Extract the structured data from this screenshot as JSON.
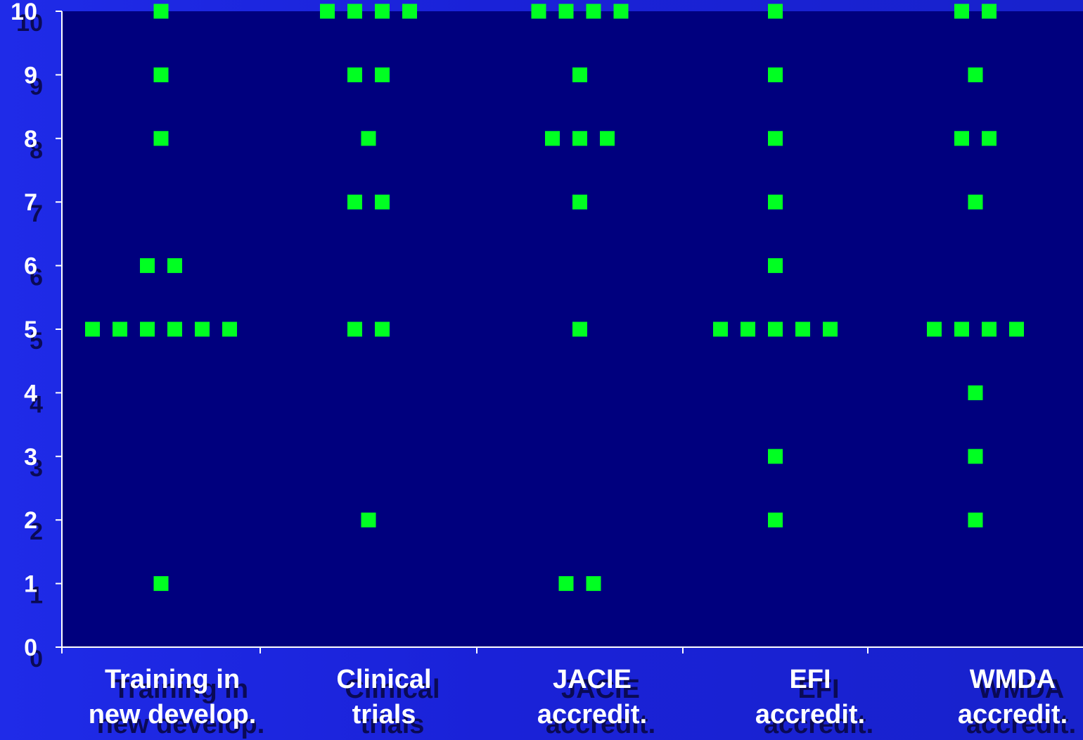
{
  "colors": {
    "plot_background": "#00007e",
    "marker": "#00ff22",
    "axis": "#ffffff",
    "label": "#ffffff",
    "label_shadow": "#0a0a55"
  },
  "chart_data": {
    "type": "scatter",
    "title": "",
    "xlabel": "",
    "ylabel": "",
    "ylim": [
      0,
      10
    ],
    "yticks": [
      "0",
      "1",
      "2",
      "3",
      "4",
      "5",
      "6",
      "7",
      "8",
      "9",
      "10"
    ],
    "grid": false,
    "legend": "none",
    "categories": [
      {
        "lines": [
          "Training in",
          "new develop."
        ],
        "values": [
          5,
          5,
          5,
          6,
          5,
          10,
          9,
          8,
          6,
          1,
          5,
          5
        ]
      },
      {
        "lines": [
          "Clinical",
          "trials"
        ],
        "values": [
          10,
          10,
          9,
          7,
          5,
          10,
          9,
          7,
          5,
          8,
          2,
          10
        ]
      },
      {
        "lines": [
          "JACIE",
          "accredit."
        ],
        "values": [
          8,
          10,
          8,
          10,
          1,
          10,
          9,
          8,
          7,
          5,
          1,
          10
        ]
      },
      {
        "lines": [
          "EFI",
          "accredit."
        ],
        "values": [
          5,
          5,
          10,
          9,
          8,
          7,
          6,
          5,
          3,
          2,
          5,
          5
        ]
      },
      {
        "lines": [
          "WMDA",
          "accredit."
        ],
        "values": [
          10,
          5,
          8,
          10,
          9,
          8,
          7,
          5,
          4,
          3,
          2,
          5,
          5
        ]
      }
    ]
  }
}
